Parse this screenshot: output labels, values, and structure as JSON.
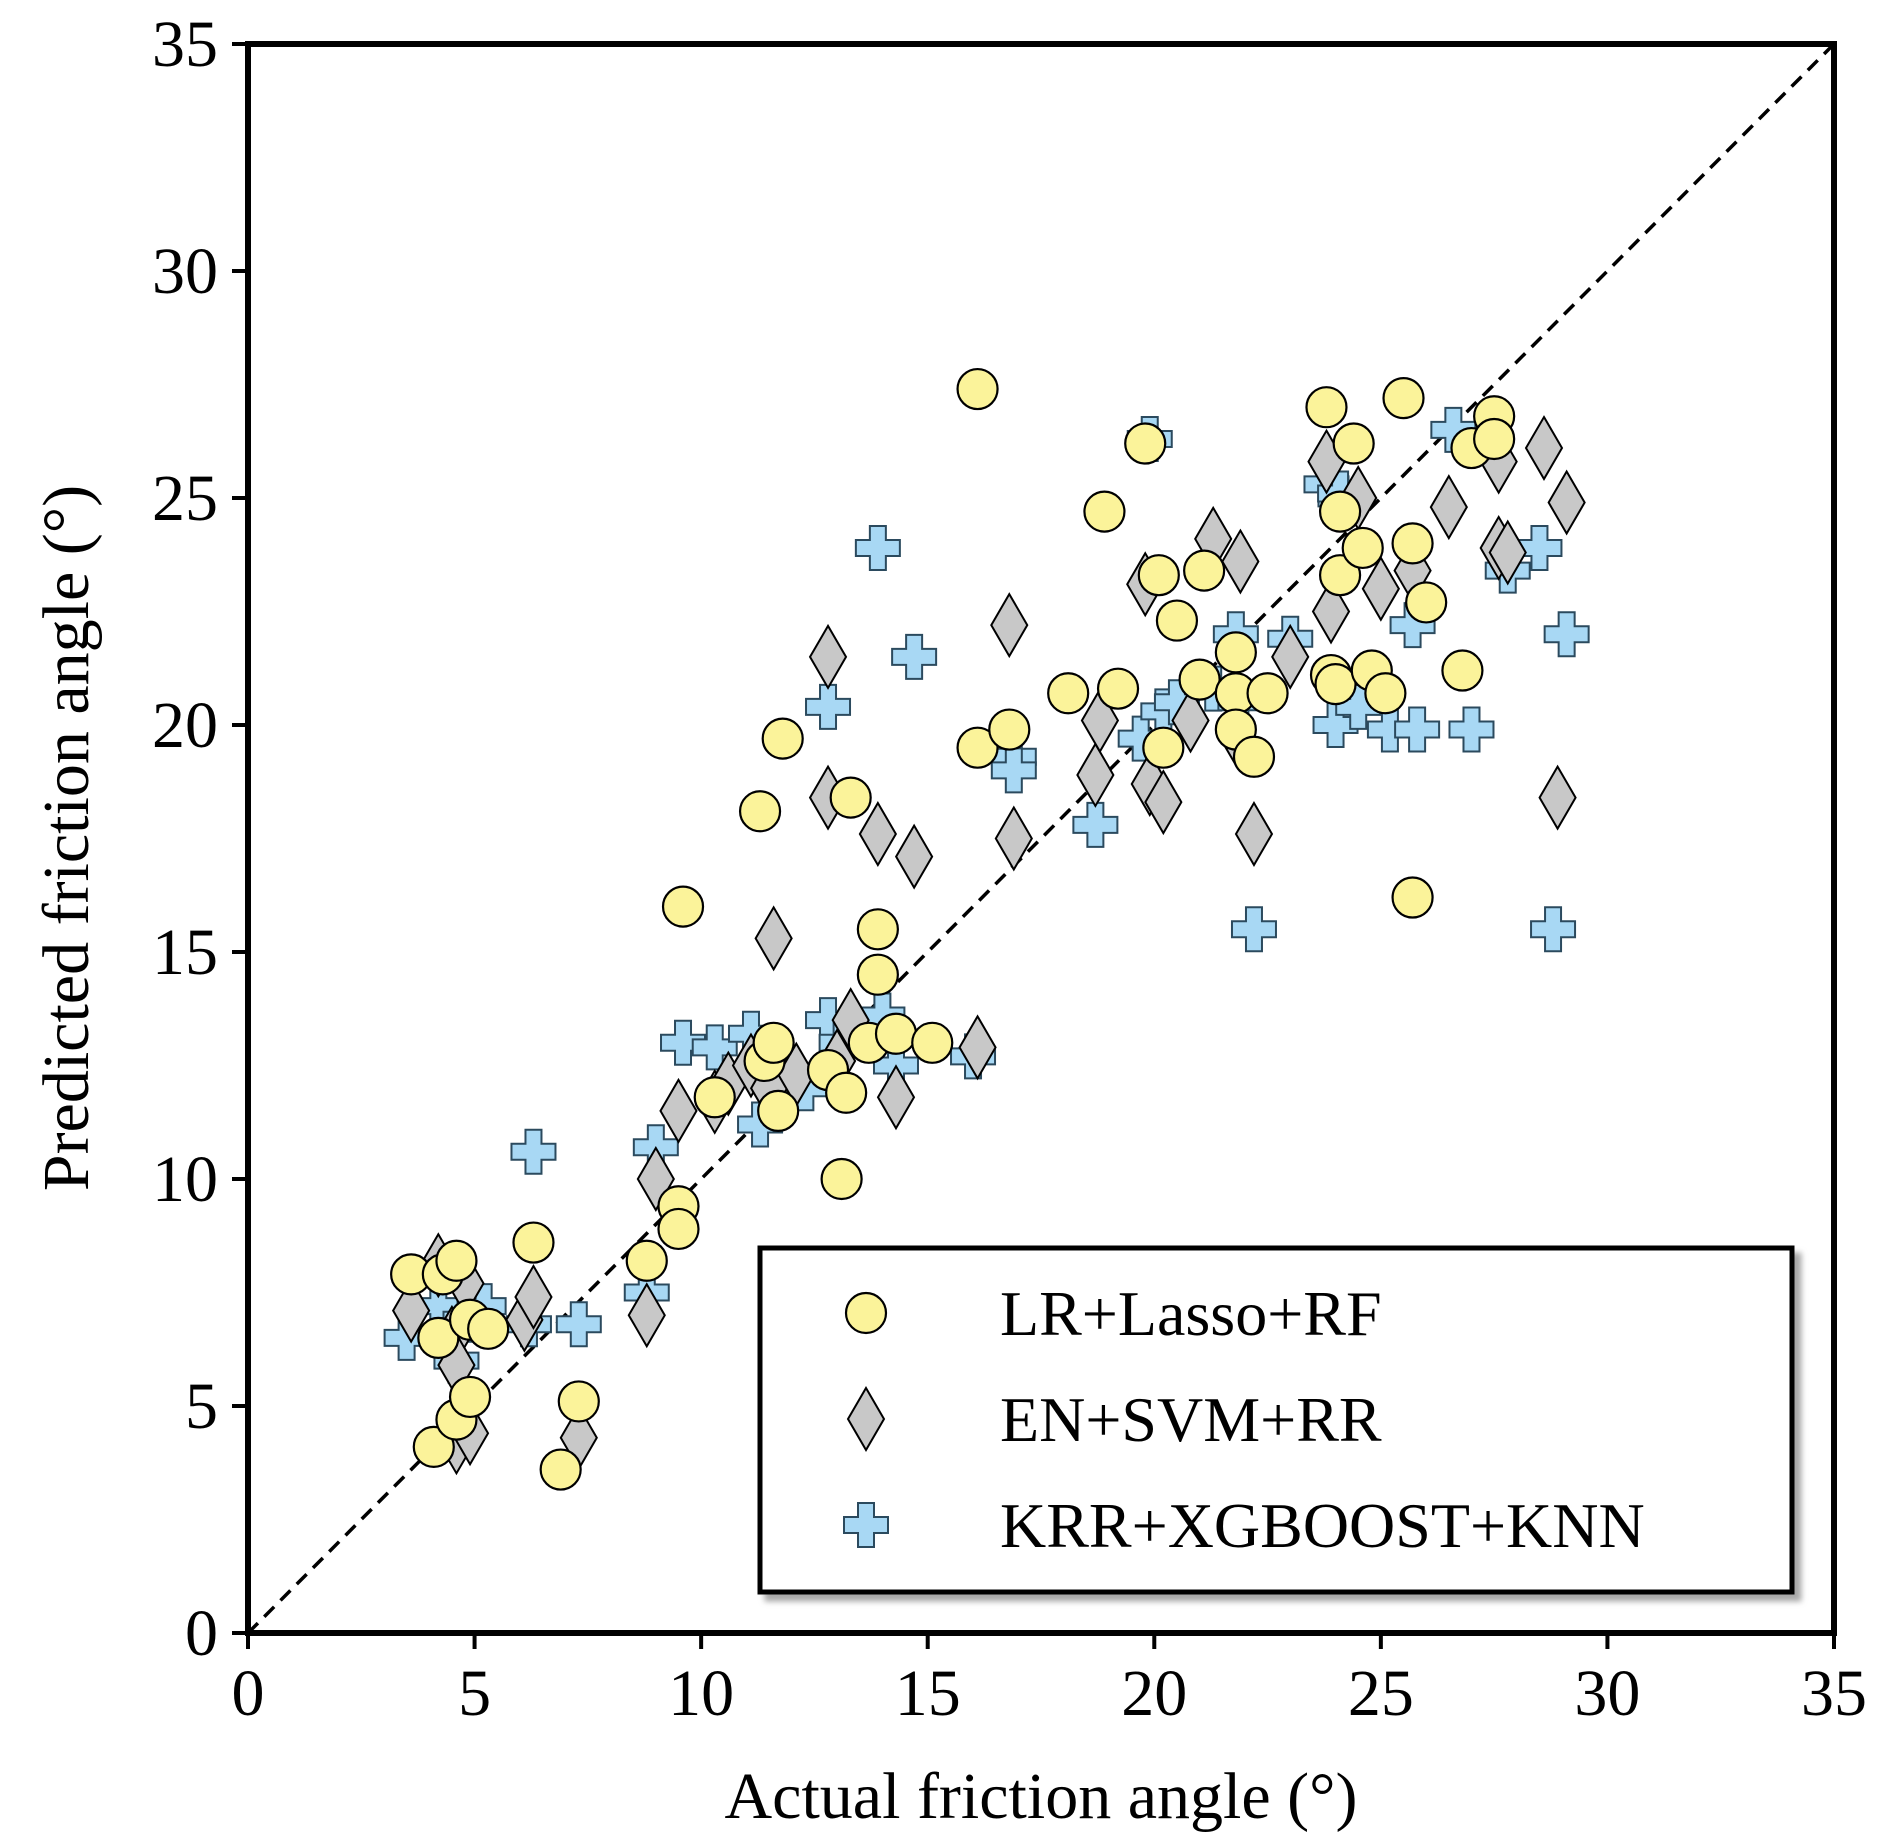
{
  "chart_data": {
    "type": "scatter",
    "title": "",
    "xlabel": "Actual friction angle (°)",
    "ylabel": "Predicted friction angle (°)",
    "xlim": [
      0,
      35
    ],
    "ylim": [
      0,
      35
    ],
    "xticks": [
      0,
      5,
      10,
      15,
      20,
      25,
      30,
      35
    ],
    "yticks": [
      0,
      5,
      10,
      15,
      20,
      25,
      30,
      35
    ],
    "grid": false,
    "reference_line": {
      "type": "y=x",
      "style": "dashed",
      "color": "#000000"
    },
    "legend_position": "bottom-right",
    "series": [
      {
        "name": "LR+Lasso+RF",
        "marker": "circle",
        "color": "#fbf39a",
        "points": [
          [
            3.6,
            7.9
          ],
          [
            4.1,
            4.1
          ],
          [
            4.2,
            6.5
          ],
          [
            4.3,
            7.9
          ],
          [
            4.6,
            8.2
          ],
          [
            4.6,
            4.7
          ],
          [
            4.9,
            6.9
          ],
          [
            4.9,
            5.2
          ],
          [
            5.3,
            6.7
          ],
          [
            6.3,
            8.6
          ],
          [
            6.9,
            3.6
          ],
          [
            7.3,
            5.1
          ],
          [
            8.8,
            8.2
          ],
          [
            9.5,
            9.4
          ],
          [
            9.5,
            8.9
          ],
          [
            9.6,
            16.0
          ],
          [
            10.3,
            11.8
          ],
          [
            11.3,
            18.1
          ],
          [
            11.4,
            12.6
          ],
          [
            11.6,
            13.0
          ],
          [
            11.8,
            19.7
          ],
          [
            11.7,
            11.5
          ],
          [
            12.8,
            12.4
          ],
          [
            13.1,
            10.0
          ],
          [
            13.2,
            11.9
          ],
          [
            13.3,
            18.4
          ],
          [
            13.7,
            13.0
          ],
          [
            13.9,
            15.5
          ],
          [
            13.9,
            14.5
          ],
          [
            14.3,
            13.2
          ],
          [
            15.1,
            13.0
          ],
          [
            16.1,
            27.4
          ],
          [
            16.1,
            19.5
          ],
          [
            16.8,
            19.9
          ],
          [
            18.1,
            20.7
          ],
          [
            18.9,
            24.7
          ],
          [
            19.2,
            20.8
          ],
          [
            19.8,
            26.2
          ],
          [
            20.1,
            23.3
          ],
          [
            20.2,
            19.5
          ],
          [
            20.5,
            22.3
          ],
          [
            21.0,
            21.0
          ],
          [
            21.1,
            23.4
          ],
          [
            21.8,
            21.6
          ],
          [
            21.8,
            20.7
          ],
          [
            21.8,
            19.9
          ],
          [
            22.2,
            19.3
          ],
          [
            22.5,
            20.7
          ],
          [
            23.8,
            27.0
          ],
          [
            23.9,
            21.1
          ],
          [
            24.0,
            20.9
          ],
          [
            24.1,
            24.7
          ],
          [
            24.1,
            23.3
          ],
          [
            24.4,
            26.2
          ],
          [
            24.6,
            23.9
          ],
          [
            24.8,
            21.2
          ],
          [
            25.1,
            20.7
          ],
          [
            25.5,
            27.2
          ],
          [
            25.7,
            24.0
          ],
          [
            25.7,
            16.2
          ],
          [
            26.0,
            22.7
          ],
          [
            26.8,
            21.2
          ],
          [
            27.0,
            26.1
          ],
          [
            27.5,
            26.8
          ],
          [
            27.5,
            26.3
          ]
        ]
      },
      {
        "name": "EN+SVM+RR",
        "marker": "diamond",
        "color": "#c8c8c8",
        "points": [
          [
            3.6,
            7.1
          ],
          [
            4.2,
            8.1
          ],
          [
            4.5,
            6.5
          ],
          [
            4.6,
            5.9
          ],
          [
            4.6,
            4.2
          ],
          [
            4.8,
            7.7
          ],
          [
            4.9,
            4.4
          ],
          [
            6.1,
            6.9
          ],
          [
            6.3,
            7.4
          ],
          [
            7.3,
            4.3
          ],
          [
            8.8,
            7.0
          ],
          [
            9.0,
            10.0
          ],
          [
            9.5,
            11.5
          ],
          [
            10.3,
            11.7
          ],
          [
            10.6,
            12.1
          ],
          [
            11.1,
            12.5
          ],
          [
            11.6,
            15.3
          ],
          [
            11.5,
            12.0
          ],
          [
            12.1,
            12.3
          ],
          [
            12.8,
            21.5
          ],
          [
            12.8,
            18.4
          ],
          [
            13.0,
            12.6
          ],
          [
            13.3,
            13.5
          ],
          [
            13.9,
            17.6
          ],
          [
            14.3,
            11.8
          ],
          [
            14.7,
            17.1
          ],
          [
            16.1,
            12.9
          ],
          [
            16.8,
            22.2
          ],
          [
            16.9,
            17.5
          ],
          [
            18.7,
            18.9
          ],
          [
            18.8,
            20.1
          ],
          [
            19.8,
            23.1
          ],
          [
            19.9,
            18.7
          ],
          [
            20.2,
            18.3
          ],
          [
            20.8,
            20.1
          ],
          [
            21.3,
            24.1
          ],
          [
            21.9,
            23.6
          ],
          [
            21.8,
            19.8
          ],
          [
            22.2,
            17.6
          ],
          [
            23.0,
            21.5
          ],
          [
            23.8,
            25.8
          ],
          [
            23.9,
            22.5
          ],
          [
            24.5,
            25.0
          ],
          [
            25.0,
            23.0
          ],
          [
            25.7,
            23.4
          ],
          [
            26.5,
            24.8
          ],
          [
            27.6,
            25.8
          ],
          [
            27.6,
            23.9
          ],
          [
            27.8,
            23.8
          ],
          [
            28.6,
            26.1
          ],
          [
            28.9,
            18.4
          ],
          [
            29.1,
            24.9
          ]
        ]
      },
      {
        "name": "KRR+XGBOOST+KNN",
        "marker": "cross",
        "color": "#a8d8f4",
        "points": [
          [
            3.5,
            6.5
          ],
          [
            4.2,
            7.2
          ],
          [
            4.6,
            6.0
          ],
          [
            4.8,
            6.9
          ],
          [
            5.2,
            7.2
          ],
          [
            6.2,
            6.8
          ],
          [
            6.3,
            10.6
          ],
          [
            7.3,
            6.8
          ],
          [
            8.8,
            7.5
          ],
          [
            9.0,
            10.7
          ],
          [
            9.6,
            13.0
          ],
          [
            10.3,
            12.9
          ],
          [
            11.1,
            13.2
          ],
          [
            11.3,
            11.2
          ],
          [
            12.3,
            12.0
          ],
          [
            12.8,
            13.5
          ],
          [
            12.8,
            20.4
          ],
          [
            13.1,
            13.0
          ],
          [
            13.9,
            23.9
          ],
          [
            14.0,
            13.6
          ],
          [
            14.3,
            12.5
          ],
          [
            14.7,
            21.5
          ],
          [
            16.0,
            12.7
          ],
          [
            16.9,
            19.3
          ],
          [
            16.9,
            19.0
          ],
          [
            18.7,
            17.8
          ],
          [
            19.7,
            19.7
          ],
          [
            19.9,
            26.3
          ],
          [
            20.2,
            20.3
          ],
          [
            20.5,
            20.5
          ],
          [
            21.3,
            20.8
          ],
          [
            21.8,
            22.0
          ],
          [
            21.9,
            20.5
          ],
          [
            22.2,
            15.5
          ],
          [
            23.0,
            21.9
          ],
          [
            23.8,
            25.3
          ],
          [
            24.0,
            20.0
          ],
          [
            24.1,
            25.1
          ],
          [
            24.5,
            20.4
          ],
          [
            25.2,
            19.9
          ],
          [
            25.7,
            22.2
          ],
          [
            25.8,
            19.9
          ],
          [
            26.6,
            26.5
          ],
          [
            27.0,
            19.9
          ],
          [
            27.8,
            23.4
          ],
          [
            28.5,
            23.9
          ],
          [
            28.8,
            15.5
          ],
          [
            29.1,
            22.0
          ]
        ]
      }
    ]
  }
}
